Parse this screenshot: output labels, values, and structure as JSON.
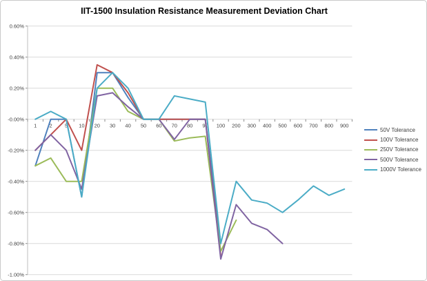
{
  "window": {
    "background": "#ffffff",
    "frame_border_color": "#c9c9c9"
  },
  "chart_data": {
    "type": "line",
    "title": "IIT-1500 Insulation Resistance Measurement Deviation Chart",
    "categories": [
      "1",
      "2",
      "5",
      "10",
      "20",
      "30",
      "40",
      "50",
      "60",
      "70",
      "80",
      "90",
      "100",
      "200",
      "300",
      "400",
      "500",
      "600",
      "700",
      "800",
      "900"
    ],
    "series": [
      {
        "name": "50V Tolerance",
        "color": "#4F81BD",
        "values": [
          -0.3,
          0.0,
          0.0,
          -0.5,
          0.3,
          0.3,
          0.14,
          0.0,
          0.0,
          0.0,
          0.0,
          0.0,
          -0.8,
          null,
          null,
          null,
          null,
          null,
          null,
          null,
          null
        ]
      },
      {
        "name": "100V Tolerance",
        "color": "#C0504D",
        "values": [
          -0.2,
          -0.1,
          0.0,
          -0.2,
          0.35,
          0.3,
          0.17,
          0.0,
          0.0,
          0.0,
          0.0,
          0.0,
          -0.88,
          null,
          null,
          null,
          null,
          null,
          null,
          null,
          null
        ]
      },
      {
        "name": "250V Tolerance",
        "color": "#9BBB59",
        "values": [
          -0.3,
          -0.25,
          -0.4,
          -0.4,
          0.2,
          0.2,
          0.05,
          0.0,
          0.0,
          -0.14,
          -0.12,
          -0.11,
          -0.85,
          -0.65,
          null,
          null,
          null,
          null,
          null,
          null,
          null
        ]
      },
      {
        "name": "500V Tolerance",
        "color": "#8064A2",
        "values": [
          -0.2,
          -0.1,
          -0.2,
          -0.45,
          0.15,
          0.17,
          0.08,
          0.0,
          0.0,
          -0.13,
          0.0,
          0.0,
          -0.9,
          -0.55,
          -0.67,
          -0.71,
          -0.8,
          null,
          null,
          null,
          null
        ]
      },
      {
        "name": "1000V Tolerance",
        "color": "#4BACC6",
        "values": [
          0.0,
          0.05,
          0.0,
          -0.5,
          0.2,
          0.3,
          0.2,
          0.0,
          0.0,
          0.15,
          0.13,
          0.11,
          -0.8,
          -0.4,
          -0.52,
          -0.54,
          -0.6,
          -0.52,
          -0.43,
          -0.49,
          -0.45
        ]
      }
    ],
    "y_axis": {
      "min": -1.0,
      "max": 0.6,
      "step": 0.2,
      "tick_labels": [
        "0.60%",
        "0.40%",
        "0.20%",
        "0.00%",
        "-0.20%",
        "-0.40%",
        "-0.60%",
        "-0.80%",
        "-1.00%"
      ]
    },
    "x_axis": {
      "position_percent": 0.0
    },
    "legend_position": "right",
    "grid": true,
    "gridline_color": "#D9D9D9",
    "axis_line_color": "#BFBFBF",
    "tick_mark_color": "#898989",
    "tick_label_color": "#3F3F3F"
  }
}
